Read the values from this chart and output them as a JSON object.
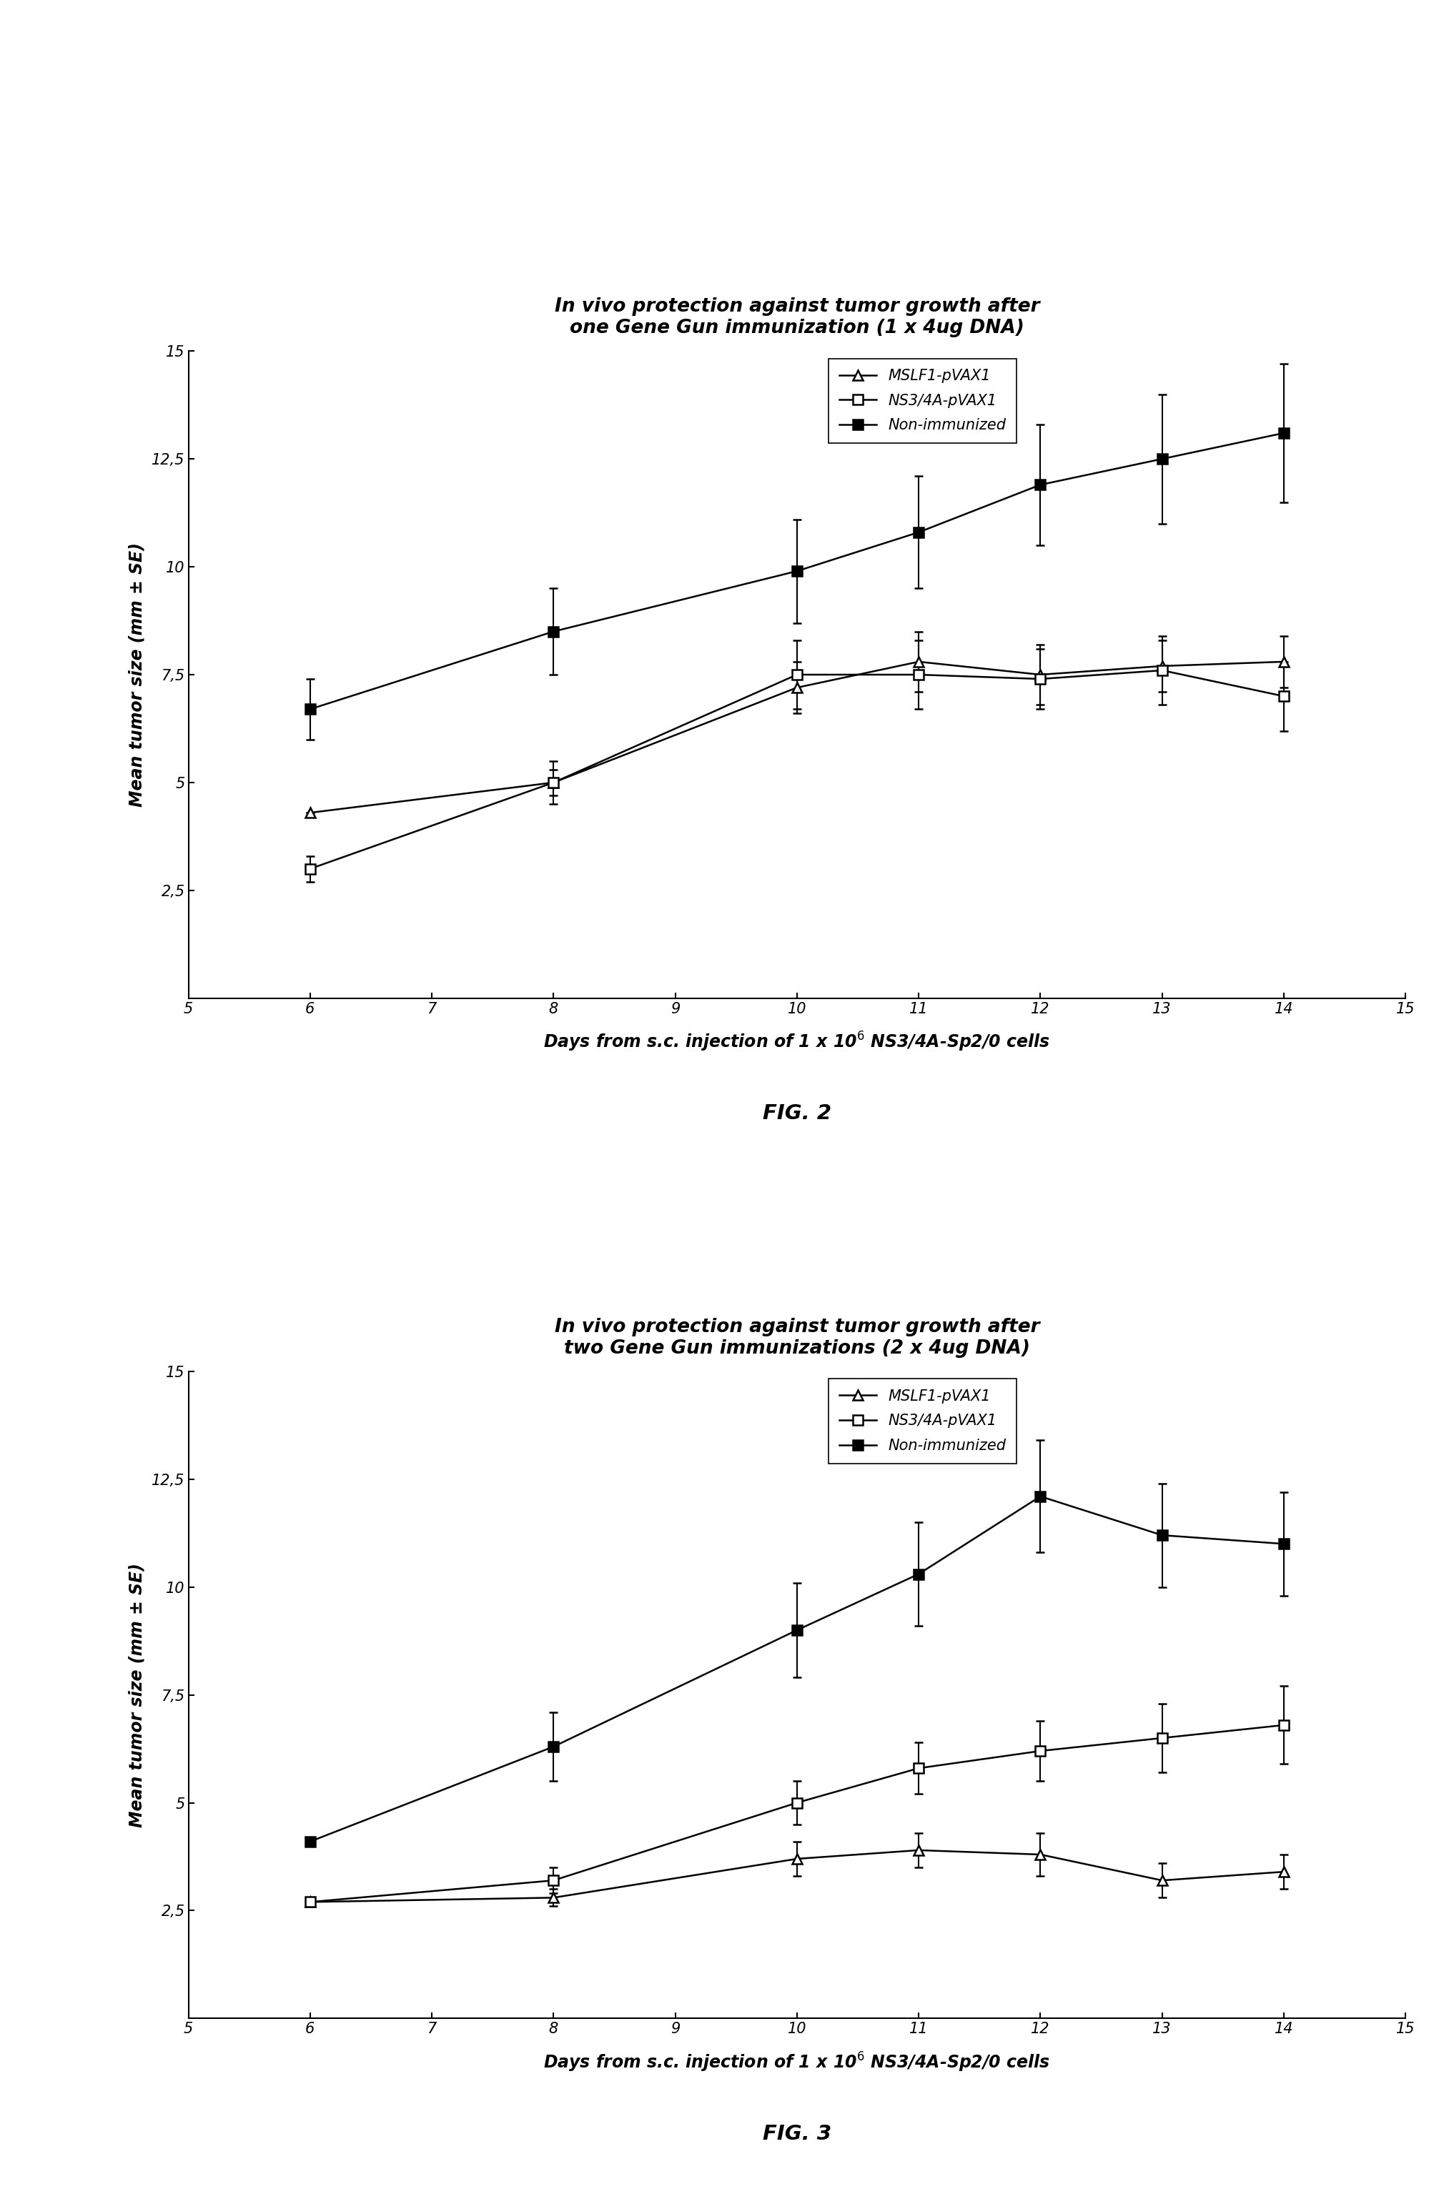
{
  "fig2": {
    "title_line1": "In vivo protection against tumor growth after",
    "title_line2": "one Gene Gun immunization (1 x 4ug DNA)",
    "fig_label": "FIG. 2",
    "ylabel": "Mean tumor size (mm ± SE)",
    "xlim": [
      5,
      15
    ],
    "ylim": [
      0,
      15
    ],
    "yticks": [
      2.5,
      5.0,
      7.5,
      10.0,
      12.5,
      15.0
    ],
    "ytick_labels": [
      "2,5",
      "5",
      "7,5",
      "10",
      "12,5",
      "15"
    ],
    "xticks": [
      5,
      6,
      7,
      8,
      9,
      10,
      11,
      12,
      13,
      14,
      15
    ],
    "series": {
      "MSLF1": {
        "label": "MSLF1-pVAX1",
        "x": [
          6,
          8,
          10,
          11,
          12,
          13,
          14
        ],
        "y": [
          4.3,
          5.0,
          7.2,
          7.8,
          7.5,
          7.7,
          7.8
        ],
        "yerr": [
          0.0,
          0.3,
          0.6,
          0.7,
          0.7,
          0.6,
          0.6
        ],
        "marker": "^",
        "fillstyle": "none",
        "color": "#000000"
      },
      "NS34A": {
        "label": "NS3/4A-pVAX1",
        "x": [
          6,
          8,
          10,
          11,
          12,
          13,
          14
        ],
        "y": [
          3.0,
          5.0,
          7.5,
          7.5,
          7.4,
          7.6,
          7.0
        ],
        "yerr": [
          0.3,
          0.5,
          0.8,
          0.8,
          0.7,
          0.8,
          0.8
        ],
        "marker": "s",
        "fillstyle": "none",
        "color": "#000000"
      },
      "NonImm": {
        "label": "Non-immunized",
        "x": [
          6,
          8,
          10,
          11,
          12,
          13,
          14
        ],
        "y": [
          6.7,
          8.5,
          9.9,
          10.8,
          11.9,
          12.5,
          13.1
        ],
        "yerr": [
          0.7,
          1.0,
          1.2,
          1.3,
          1.4,
          1.5,
          1.6
        ],
        "marker": "s",
        "fillstyle": "full",
        "color": "#000000"
      }
    }
  },
  "fig3": {
    "title_line1": "In vivo protection against tumor growth after",
    "title_line2": "two Gene Gun immunizations (2 x 4ug DNA)",
    "fig_label": "FIG. 3",
    "ylabel": "Mean tumor size (mm ± SE)",
    "xlim": [
      5,
      15
    ],
    "ylim": [
      0,
      15
    ],
    "yticks": [
      2.5,
      5.0,
      7.5,
      10.0,
      12.5,
      15.0
    ],
    "ytick_labels": [
      "2,5",
      "5",
      "7,5",
      "10",
      "12,5",
      "15"
    ],
    "xticks": [
      5,
      6,
      7,
      8,
      9,
      10,
      11,
      12,
      13,
      14,
      15
    ],
    "series": {
      "MSLF1": {
        "label": "MSLF1-pVAX1",
        "x": [
          6,
          8,
          10,
          11,
          12,
          13,
          14
        ],
        "y": [
          2.7,
          2.8,
          3.7,
          3.9,
          3.8,
          3.2,
          3.4
        ],
        "yerr": [
          0.0,
          0.2,
          0.4,
          0.4,
          0.5,
          0.4,
          0.4
        ],
        "marker": "^",
        "fillstyle": "none",
        "color": "#000000"
      },
      "NS34A": {
        "label": "NS3/4A-pVAX1",
        "x": [
          6,
          8,
          10,
          11,
          12,
          13,
          14
        ],
        "y": [
          2.7,
          3.2,
          5.0,
          5.8,
          6.2,
          6.5,
          6.8
        ],
        "yerr": [
          0.0,
          0.3,
          0.5,
          0.6,
          0.7,
          0.8,
          0.9
        ],
        "marker": "s",
        "fillstyle": "none",
        "color": "#000000"
      },
      "NonImm": {
        "label": "Non-immunized",
        "x": [
          6,
          8,
          10,
          11,
          12,
          13,
          14
        ],
        "y": [
          4.1,
          6.3,
          9.0,
          10.3,
          12.1,
          11.2,
          11.0
        ],
        "yerr": [
          0.0,
          0.8,
          1.1,
          1.2,
          1.3,
          1.2,
          1.2
        ],
        "marker": "s",
        "fillstyle": "full",
        "color": "#000000"
      }
    }
  },
  "xlabel_base": "Days from s.c. injection of 1 x 10",
  "xlabel_super": "6",
  "xlabel_suffix": " NS3/4A-Sp2/0 cells",
  "background_color": "#ffffff",
  "font_color": "#000000",
  "title_fontsize": 19,
  "label_fontsize": 17,
  "tick_fontsize": 15,
  "legend_fontsize": 15,
  "fig_label_fontsize": 21,
  "xlabel_fontsize": 17,
  "linewidth": 1.8,
  "markersize": 10,
  "capsize": 4
}
